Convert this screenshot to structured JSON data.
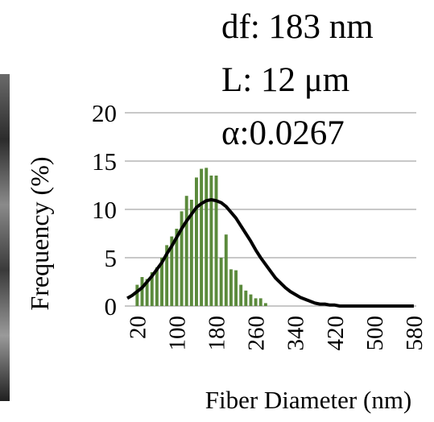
{
  "chart_data": {
    "type": "bar",
    "annotations": [
      "df: 183 nm",
      "L: 12 μm",
      "α:0.0267"
    ],
    "x_label": "Fiber Diameter (nm)",
    "y_label": "Frequency (%)",
    "categories": [
      null,
      null,
      "20",
      null,
      null,
      null,
      null,
      null,
      null,
      null,
      "100",
      null,
      null,
      null,
      null,
      null,
      null,
      null,
      "180",
      null,
      null,
      null,
      null,
      null,
      null,
      null,
      "260",
      null,
      null,
      null,
      null,
      null,
      null,
      null,
      "340",
      null,
      null,
      null,
      null,
      null,
      null,
      null,
      "420",
      null,
      null,
      null,
      null,
      null,
      null,
      null,
      "500",
      null,
      null,
      null,
      null,
      null,
      null,
      null,
      "580"
    ],
    "series": [
      {
        "type": "bar",
        "color": "#5b8a3c",
        "values": [
          0,
          0,
          2.2,
          3.0,
          2.8,
          3.5,
          4.0,
          5.0,
          6.3,
          7.2,
          8.0,
          9.8,
          11.4,
          11.0,
          13.3,
          14.2,
          14.3,
          13.5,
          13.5,
          5.0,
          7.4,
          3.8,
          3.7,
          2.2,
          1.6,
          1.2,
          0.8,
          0.8,
          0.3,
          0,
          0,
          0,
          0,
          0,
          0,
          0,
          0,
          0,
          0,
          0,
          0,
          0,
          0,
          0,
          0,
          0,
          0,
          0,
          0,
          0,
          0,
          0,
          0,
          0,
          0,
          0,
          0,
          0,
          0
        ]
      },
      {
        "type": "line",
        "color": "#000000",
        "values": [
          0.8,
          1.1,
          1.5,
          1.9,
          2.5,
          3.1,
          3.8,
          4.5,
          5.4,
          6.2,
          7.1,
          8.0,
          8.8,
          9.5,
          10.2,
          10.6,
          10.9,
          11.0,
          10.9,
          10.7,
          10.3,
          9.7,
          9.1,
          8.3,
          7.5,
          6.7,
          5.8,
          5.0,
          4.3,
          3.6,
          2.9,
          2.4,
          1.9,
          1.5,
          1.2,
          0.9,
          0.7,
          0.5,
          0.3,
          0.2,
          0.2,
          0.1,
          0.1,
          0,
          0,
          0,
          0,
          0,
          0,
          0,
          0,
          0,
          0,
          0,
          0,
          0,
          0,
          0,
          0
        ]
      }
    ],
    "ylim": [
      0,
      20
    ],
    "yticks": [
      0,
      5,
      10,
      15,
      20
    ],
    "grid": true
  }
}
